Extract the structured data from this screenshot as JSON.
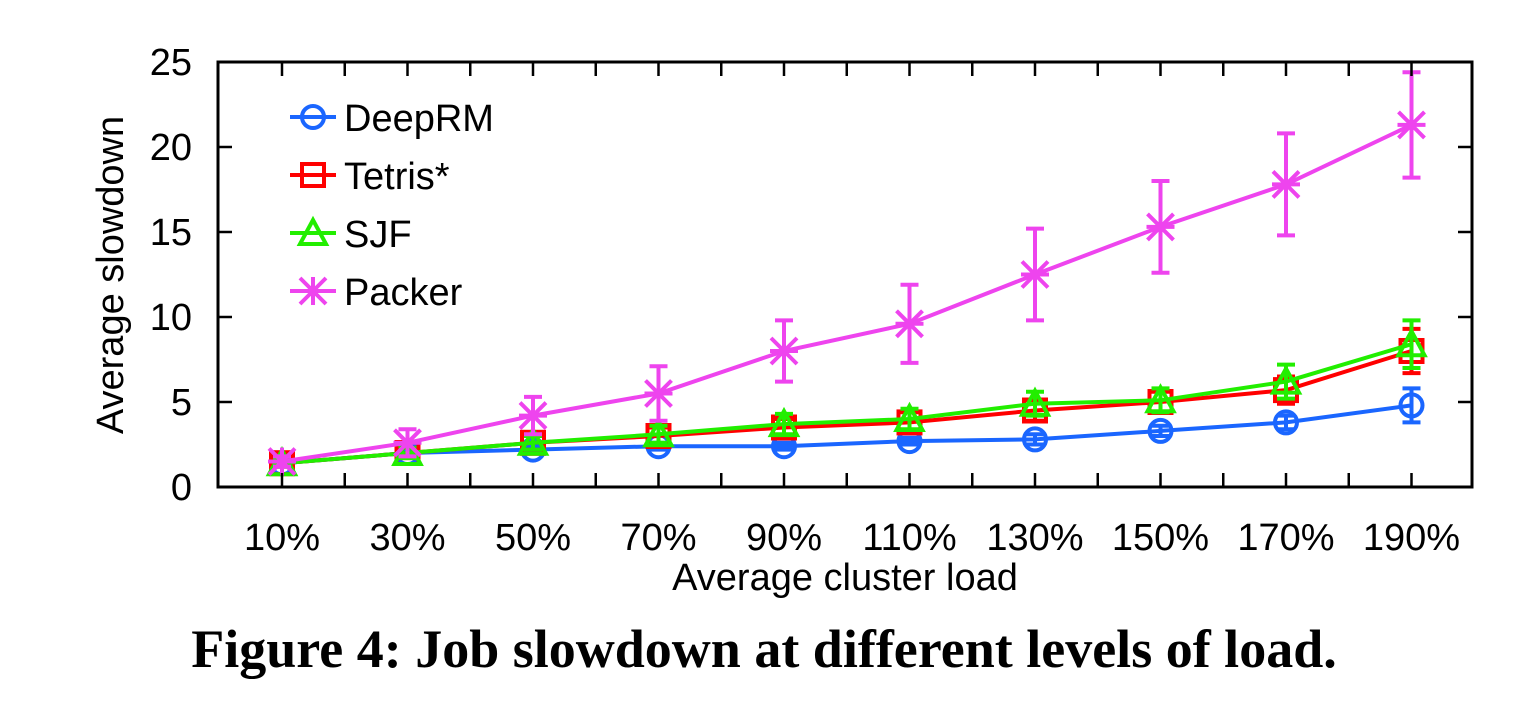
{
  "caption": "Figure 4: Job slowdown at different levels of load.",
  "chart_data": {
    "type": "line",
    "xlabel": "Average cluster load",
    "ylabel": "Average slowdown",
    "categories": [
      "10%",
      "30%",
      "50%",
      "70%",
      "90%",
      "110%",
      "130%",
      "150%",
      "170%",
      "190%"
    ],
    "ylim": [
      0,
      25
    ],
    "yticks": [
      "0",
      "5",
      "10",
      "15",
      "20",
      "25"
    ],
    "grid": false,
    "legend_position": "top-left",
    "series": [
      {
        "name": "DeepRM",
        "color": "#1a66ff",
        "marker": "circle",
        "values": [
          1.4,
          2.0,
          2.2,
          2.4,
          2.4,
          2.7,
          2.8,
          3.3,
          3.8,
          4.8
        ],
        "error": [
          0.2,
          0.2,
          0.2,
          0.2,
          0.2,
          0.2,
          0.3,
          0.3,
          0.4,
          1.0
        ]
      },
      {
        "name": "Tetris*",
        "color": "#ff0000",
        "marker": "square",
        "values": [
          1.4,
          2.0,
          2.6,
          3.0,
          3.5,
          3.8,
          4.5,
          5.0,
          5.7,
          8.0
        ],
        "error": [
          0.2,
          0.3,
          0.4,
          0.5,
          0.5,
          0.6,
          0.6,
          0.6,
          0.8,
          1.3
        ]
      },
      {
        "name": "SJF",
        "color": "#22ee00",
        "marker": "triangle",
        "values": [
          1.4,
          2.0,
          2.6,
          3.1,
          3.7,
          4.0,
          4.9,
          5.1,
          6.2,
          8.4
        ],
        "error": [
          0.2,
          0.3,
          0.4,
          0.5,
          0.6,
          0.6,
          0.7,
          0.7,
          1.0,
          1.4
        ]
      },
      {
        "name": "Packer",
        "color": "#ee44ee",
        "marker": "x",
        "values": [
          1.5,
          2.6,
          4.2,
          5.5,
          8.0,
          9.6,
          12.5,
          15.3,
          17.8,
          21.3
        ],
        "error": [
          0.3,
          0.8,
          1.1,
          1.6,
          1.8,
          2.3,
          2.7,
          2.7,
          3.0,
          3.1
        ]
      }
    ]
  }
}
